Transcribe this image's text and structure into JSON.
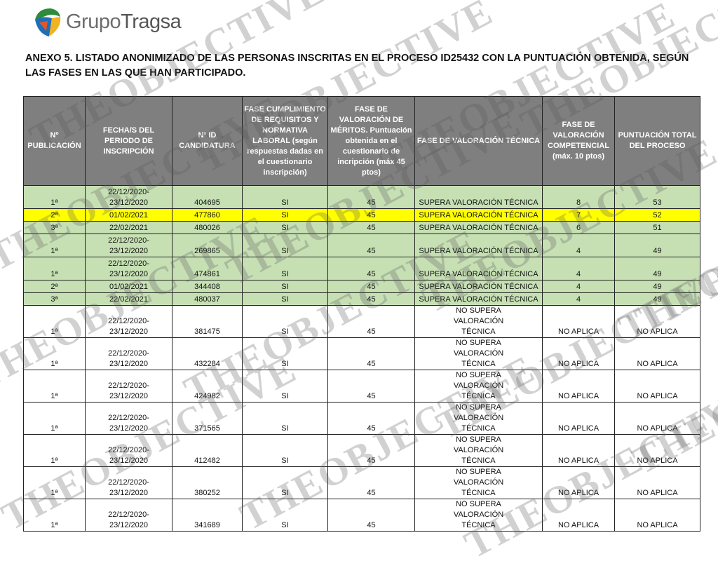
{
  "logo": {
    "text_light": "Grupo",
    "text_bold": "Tragsa"
  },
  "title": "ANEXO 5. LISTADO ANONIMIZADO DE LAS PERSONAS INSCRITAS EN EL PROCESO ID25432 CON LA PUNTUACIÓN OBTENIDA, SEGÚN LAS FASES EN LAS QUE HAN PARTICIPADO.",
  "watermark": "THEOBJECTIVE",
  "colors": {
    "header": "#7f7f7f",
    "green_row": "#c6e0b4",
    "highlight_row": "#ffff00"
  },
  "table": {
    "headers": [
      "Nº PUBLICACIÓN",
      "FECHA/S DEL PERIODO DE INSCRIPCIÓN",
      "Nº ID CANDIDATURA",
      "FASE CUMPLIMIENTO DE REQUISITOS Y NORMATIVA LABORAL (según respuestas dadas en el cuestionario inscripción)",
      "FASE DE VALORACIÓN DE MÉRITOS. Puntuación obtenida en el cuestionario de incripción (máx 45 ptos)",
      "FASE DE VALORACIÓN TÉCNICA",
      "FASE DE VALORACIÓN COMPETENCIAL (máx. 10 ptos)",
      "PUNTUACIÓN TOTAL DEL PROCESO"
    ],
    "rows": [
      {
        "style": "green",
        "cells": [
          "1ª",
          "22/12/2020- 23/12/2020",
          "404695",
          "SI",
          "45",
          "SUPERA VALORACIÓN TÉCNICA",
          "8",
          "53"
        ]
      },
      {
        "style": "yellow",
        "cells": [
          "2ª",
          "01/02/2021",
          "477860",
          "SI",
          "45",
          "SUPERA VALORACIÓN TÉCNICA",
          "7",
          "52"
        ]
      },
      {
        "style": "green",
        "cells": [
          "3ª",
          "22/02/2021",
          "480026",
          "SI",
          "45",
          "SUPERA VALORACIÓN TÉCNICA",
          "6",
          "51"
        ]
      },
      {
        "style": "green",
        "cells": [
          "1ª",
          "22/12/2020- 23/12/2020",
          "269865",
          "SI",
          "45",
          "SUPERA VALORACIÓN TÉCNICA",
          "4",
          "49"
        ]
      },
      {
        "style": "green",
        "cells": [
          "1ª",
          "22/12/2020- 23/12/2020",
          "474861",
          "SI",
          "45",
          "SUPERA VALORACIÓN TÉCNICA",
          "4",
          "49"
        ]
      },
      {
        "style": "green",
        "cells": [
          "2ª",
          "01/02/2021",
          "344408",
          "SI",
          "45",
          "SUPERA VALORACIÓN TÉCNICA",
          "4",
          "49"
        ]
      },
      {
        "style": "green",
        "cells": [
          "3ª",
          "22/02/2021",
          "480037",
          "SI",
          "45",
          "SUPERA VALORACIÓN TÉCNICA",
          "4",
          "49"
        ]
      },
      {
        "style": "white",
        "cells": [
          "1ª",
          "22/12/2020- 23/12/2020",
          "381475",
          "SI",
          "45",
          "NO SUPERA VALORACIÓN TÉCNICA",
          "NO APLICA",
          "NO APLICA"
        ]
      },
      {
        "style": "white",
        "cells": [
          "1ª",
          "22/12/2020- 23/12/2020",
          "432284",
          "SI",
          "45",
          "NO SUPERA VALORACIÓN TÉCNICA",
          "NO APLICA",
          "NO APLICA"
        ]
      },
      {
        "style": "white",
        "cells": [
          "1ª",
          "22/12/2020- 23/12/2020",
          "424982",
          "SI",
          "45",
          "NO SUPERA VALORACIÓN TÉCNICA",
          "NO APLICA",
          "NO APLICA"
        ]
      },
      {
        "style": "white",
        "cells": [
          "1ª",
          "22/12/2020- 23/12/2020",
          "371565",
          "SI",
          "45",
          "NO SUPERA VALORACIÓN TÉCNICA",
          "NO APLICA",
          "NO APLICA"
        ]
      },
      {
        "style": "white",
        "cells": [
          "1ª",
          "22/12/2020- 23/12/2020",
          "412482",
          "SI",
          "45",
          "NO SUPERA VALORACIÓN TÉCNICA",
          "NO APLICA",
          "NO APLICA"
        ]
      },
      {
        "style": "white",
        "cells": [
          "1ª",
          "22/12/2020- 23/12/2020",
          "380252",
          "SI",
          "45",
          "NO SUPERA VALORACIÓN TÉCNICA",
          "NO APLICA",
          "NO APLICA"
        ]
      },
      {
        "style": "white",
        "cells": [
          "1ª",
          "22/12/2020- 23/12/2020",
          "341689",
          "SI",
          "45",
          "NO SUPERA VALORACIÓN TÉCNICA",
          "NO APLICA",
          "NO APLICA"
        ]
      }
    ]
  }
}
